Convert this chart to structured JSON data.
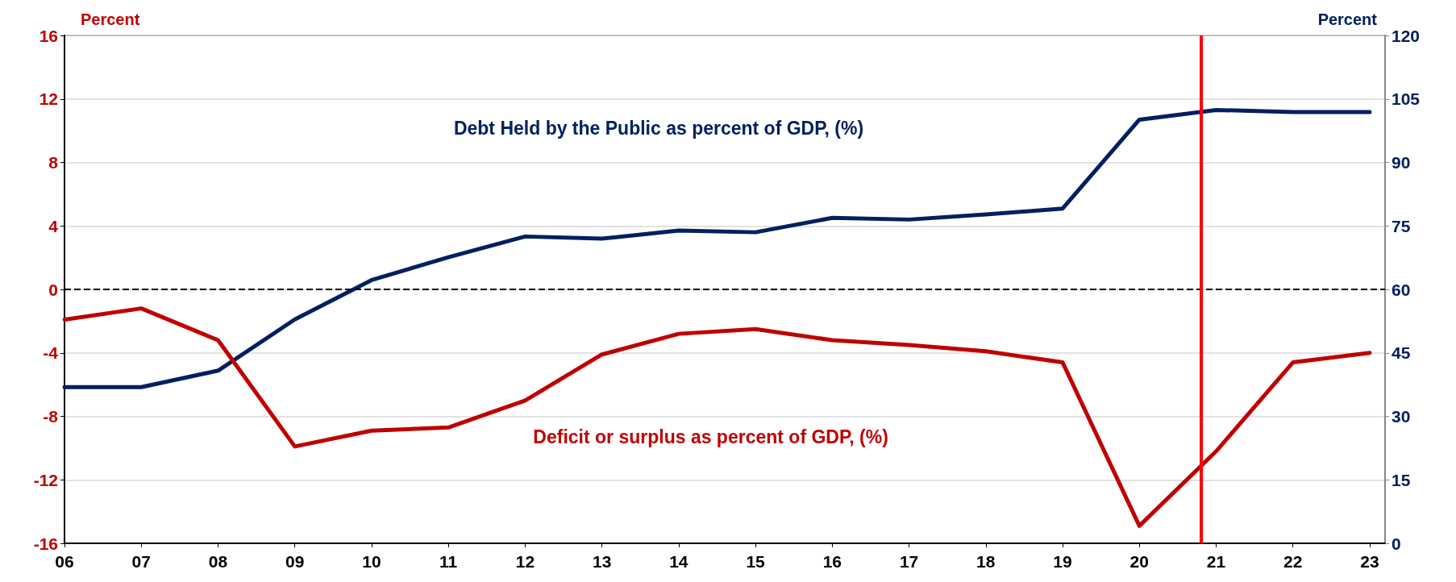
{
  "chart_data": {
    "type": "line",
    "ylabel": "Percent",
    "y2label": "Percent",
    "x": [
      2006,
      2007,
      2008,
      2009,
      2010,
      2011,
      2012,
      2013,
      2014,
      2015,
      2016,
      2017,
      2018,
      2019,
      2020,
      2021,
      2022,
      2023
    ],
    "xlim": [
      2006,
      2023.2
    ],
    "xticks": [
      {
        "value": 2006,
        "label": "06"
      },
      {
        "value": 2007,
        "label": "07"
      },
      {
        "value": 2008,
        "label": "08"
      },
      {
        "value": 2009,
        "label": "09"
      },
      {
        "value": 2010,
        "label": "10"
      },
      {
        "value": 2011,
        "label": "11"
      },
      {
        "value": 2012,
        "label": "12"
      },
      {
        "value": 2013,
        "label": "13"
      },
      {
        "value": 2014,
        "label": "14"
      },
      {
        "value": 2015,
        "label": "15"
      },
      {
        "value": 2016,
        "label": "16"
      },
      {
        "value": 2017,
        "label": "17"
      },
      {
        "value": 2018,
        "label": "18"
      },
      {
        "value": 2019,
        "label": "19"
      },
      {
        "value": 2020,
        "label": "20"
      },
      {
        "value": 2021,
        "label": "21"
      },
      {
        "value": 2022,
        "label": "22"
      },
      {
        "value": 2023,
        "label": "23"
      }
    ],
    "ylim": [
      -16,
      16
    ],
    "yticks": [
      -16,
      -12,
      -8,
      -4,
      0,
      4,
      8,
      12,
      16
    ],
    "y2lim": [
      0,
      120
    ],
    "y2ticks": [
      0,
      15,
      30,
      45,
      60,
      75,
      90,
      105,
      120
    ],
    "grid": "y",
    "legend": false,
    "marker": "none",
    "line_style": "solid",
    "series": [
      {
        "name": "Debt Held by the Public as percent of GDP, (%)",
        "color": "#002060",
        "axis": "y2",
        "values": [
          36.9,
          36.9,
          40.8,
          52.9,
          62.2,
          67.6,
          72.5,
          72.0,
          73.9,
          73.5,
          76.9,
          76.5,
          77.7,
          79.1,
          100.1,
          102.4,
          101.9,
          101.9
        ]
      },
      {
        "name": "Deficit or surplus as percent of GDP, (%)",
        "color": "#c00000",
        "values": [
          -1.9,
          -1.2,
          -3.2,
          -9.9,
          -8.9,
          -8.7,
          -7.0,
          -4.1,
          -2.8,
          -2.5,
          -3.2,
          -3.5,
          -3.9,
          -4.6,
          -14.9,
          -10.2,
          -4.6,
          -4.0
        ]
      }
    ],
    "ref_lines": [
      {
        "axis": "y",
        "value": 0,
        "color": "#000000",
        "line_style": "dashed"
      },
      {
        "axis": "x",
        "value": 2020.8,
        "color": "#ff0000",
        "line_style": "solid"
      }
    ]
  }
}
